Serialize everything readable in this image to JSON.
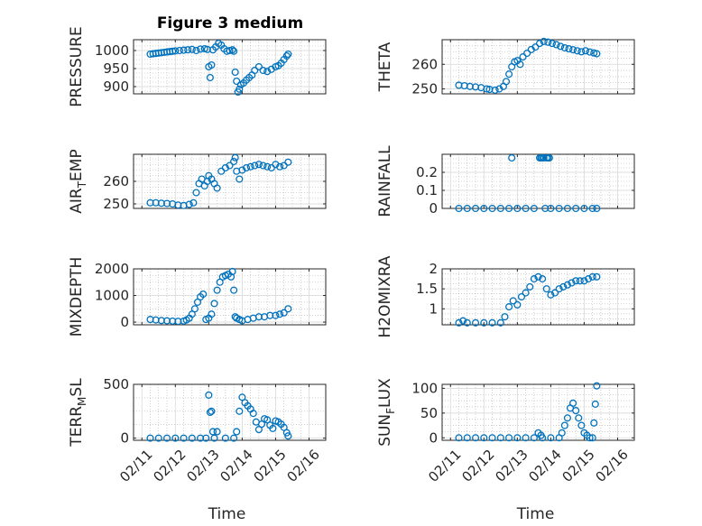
{
  "figure": {
    "title": "Figure 3 medium",
    "xlabel": "Time",
    "x_tick_labels": [
      "02/11",
      "02/12",
      "02/13",
      "02/14",
      "02/15",
      "02/16"
    ],
    "marker_color": "#0072BD"
  },
  "chart_data": [
    {
      "type": "scatter",
      "ylabel": "PRESSURE",
      "ylim": [
        880,
        1030
      ],
      "yticks": [
        900,
        950,
        1000
      ],
      "ytick_labels": [
        "900",
        "950",
        "1000"
      ],
      "series": [
        {
          "x": [
            "02/11 06:00",
            "02/11 08:00",
            "02/11 10:00",
            "02/11 12:00",
            "02/11 14:00",
            "02/11 16:00",
            "02/11 18:00",
            "02/11 20:00",
            "02/11 22:00",
            "02/12 00:00",
            "02/12 03:00",
            "02/12 06:00",
            "02/12 09:00",
            "02/12 12:00",
            "02/12 15:00",
            "02/12 18:00",
            "02/12 21:00",
            "02/12 23:00",
            "02/13 00:00",
            "02/13 01:00",
            "02/13 02:00",
            "02/13 03:00",
            "02/13 05:00",
            "02/13 07:00",
            "02/13 09:00",
            "02/13 11:00",
            "02/13 13:00",
            "02/13 15:00",
            "02/13 17:00",
            "02/13 18:00",
            "02/13 19:00",
            "02/13 20:00",
            "02/13 21:00",
            "02/13 22:00",
            "02/13 23:00",
            "02/14 01:00",
            "02/14 03:00",
            "02/14 05:00",
            "02/14 07:00",
            "02/14 09:00",
            "02/14 12:00",
            "02/14 15:00",
            "02/14 18:00",
            "02/14 21:00",
            "02/15 00:00",
            "02/15 02:00",
            "02/15 04:00",
            "02/15 06:00",
            "02/15 08:00",
            "02/15 09:00"
          ],
          "y": [
            990,
            991,
            992,
            993,
            994,
            995,
            996,
            997,
            998,
            999,
            1000,
            1001,
            1002,
            1003,
            1000,
            1004,
            1005,
            1003,
            955,
            925,
            960,
            1002,
            1010,
            1020,
            1015,
            1005,
            998,
            1000,
            1002,
            998,
            940,
            915,
            885,
            893,
            905,
            910,
            918,
            925,
            932,
            945,
            955,
            945,
            942,
            948,
            955,
            958,
            965,
            975,
            985,
            990
          ]
        }
      ]
    },
    {
      "type": "scatter",
      "ylabel": "THETA",
      "ylim": [
        248,
        270
      ],
      "yticks": [
        250,
        260
      ],
      "ytick_labels": [
        "250",
        "260"
      ],
      "series": [
        {
          "x": [
            "02/11 06:00",
            "02/11 10:00",
            "02/11 14:00",
            "02/11 18:00",
            "02/11 22:00",
            "02/12 02:00",
            "02/12 04:00",
            "02/12 08:00",
            "02/12 11:00",
            "02/12 14:00",
            "02/12 16:00",
            "02/12 18:00",
            "02/12 20:00",
            "02/12 22:00",
            "02/13 00:00",
            "02/13 02:00",
            "02/13 04:00",
            "02/13 07:00",
            "02/13 10:00",
            "02/13 13:00",
            "02/13 16:00",
            "02/13 19:00",
            "02/13 22:00",
            "02/14 01:00",
            "02/14 04:00",
            "02/14 07:00",
            "02/14 10:00",
            "02/14 13:00",
            "02/14 16:00",
            "02/14 19:00",
            "02/14 22:00",
            "02/15 01:00",
            "02/15 04:00",
            "02/15 07:00",
            "02/15 09:00"
          ],
          "y": [
            251.5,
            251.3,
            251,
            250.8,
            250.5,
            250,
            249.8,
            249.5,
            250,
            251,
            253,
            256,
            259,
            261,
            261.5,
            260,
            263,
            264.5,
            266,
            267,
            268.5,
            269.3,
            269,
            268.5,
            268,
            267.3,
            266.7,
            266.3,
            265.9,
            265.5,
            265.1,
            265.5,
            265,
            264.6,
            264.3
          ]
        }
      ]
    },
    {
      "type": "scatter",
      "ylabel": "AIRTEMP",
      "ylabel_parts": [
        "AIR",
        "T",
        "EMP"
      ],
      "ylim": [
        248,
        272
      ],
      "yticks": [
        250,
        260
      ],
      "ytick_labels": [
        "250",
        "260"
      ],
      "series": [
        {
          "x": [
            "02/11 06:00",
            "02/11 10:00",
            "02/11 14:00",
            "02/11 18:00",
            "02/11 22:00",
            "02/12 02:00",
            "02/12 06:00",
            "02/12 10:00",
            "02/12 13:00",
            "02/12 15:00",
            "02/12 17:00",
            "02/12 19:00",
            "02/12 21:00",
            "02/12 23:00",
            "02/13 00:00",
            "02/13 02:00",
            "02/13 04:00",
            "02/13 06:00",
            "02/13 09:00",
            "02/13 12:00",
            "02/13 15:00",
            "02/13 18:00",
            "02/13 19:00",
            "02/13 20:00",
            "02/13 22:00",
            "02/14 00:00",
            "02/14 03:00",
            "02/14 06:00",
            "02/14 09:00",
            "02/14 12:00",
            "02/14 15:00",
            "02/14 18:00",
            "02/14 21:00",
            "02/15 00:00",
            "02/15 03:00",
            "02/15 06:00",
            "02/15 09:00"
          ],
          "y": [
            250.5,
            250.5,
            250.3,
            250.2,
            250,
            249.5,
            249.3,
            249.8,
            250.5,
            255,
            259,
            261,
            258,
            260,
            262.5,
            261,
            259,
            257,
            264.5,
            266,
            267,
            268.8,
            270.5,
            264.5,
            261,
            265,
            266,
            266.5,
            267,
            267.5,
            267,
            266.5,
            266,
            267.5,
            266.5,
            267,
            268.5
          ]
        }
      ]
    },
    {
      "type": "scatter",
      "ylabel": "RAINFALL",
      "ylim": [
        0,
        0.3
      ],
      "yticks": [
        0,
        0.1,
        0.2
      ],
      "ytick_labels": [
        "0",
        "0.1",
        "0.2"
      ],
      "series": [
        {
          "x": [
            "02/11 06:00",
            "02/11 12:00",
            "02/11 18:00",
            "02/12 00:00",
            "02/12 06:00",
            "02/12 12:00",
            "02/12 18:00",
            "02/12 20:00",
            "02/13 00:00",
            "02/13 06:00",
            "02/13 12:00",
            "02/13 16:00",
            "02/13 17:00",
            "02/13 18:00",
            "02/13 19:00",
            "02/13 20:00",
            "02/13 21:00",
            "02/13 22:00",
            "02/13 23:00",
            "02/14 00:00",
            "02/14 06:00",
            "02/14 12:00",
            "02/14 18:00",
            "02/15 00:00",
            "02/15 06:00",
            "02/15 09:00"
          ],
          "y": [
            0,
            0,
            0,
            0,
            0,
            0,
            0,
            0.28,
            0,
            0,
            0,
            0.28,
            0.28,
            0.28,
            0.28,
            0,
            0.28,
            0.28,
            0.28,
            0,
            0,
            0,
            0,
            0,
            0,
            0
          ]
        }
      ]
    },
    {
      "type": "scatter",
      "ylabel": "MIXDEPTH",
      "ylim": [
        -100,
        2000
      ],
      "yticks": [
        0,
        1000,
        2000
      ],
      "ytick_labels": [
        "0",
        "1000",
        "2000"
      ],
      "series": [
        {
          "x": [
            "02/11 06:00",
            "02/11 10:00",
            "02/11 14:00",
            "02/11 18:00",
            "02/11 22:00",
            "02/12 02:00",
            "02/12 06:00",
            "02/12 08:00",
            "02/12 10:00",
            "02/12 12:00",
            "02/12 14:00",
            "02/12 16:00",
            "02/12 18:00",
            "02/12 20:00",
            "02/12 22:00",
            "02/13 00:00",
            "02/13 02:00",
            "02/13 04:00",
            "02/13 06:00",
            "02/13 08:00",
            "02/13 10:00",
            "02/13 12:00",
            "02/13 14:00",
            "02/13 16:00",
            "02/13 17:00",
            "02/13 18:00",
            "02/13 19:00",
            "02/13 20:00",
            "02/13 22:00",
            "02/14 00:00",
            "02/14 04:00",
            "02/14 08:00",
            "02/14 12:00",
            "02/14 16:00",
            "02/14 20:00",
            "02/15 00:00",
            "02/15 03:00",
            "02/15 06:00",
            "02/15 09:00"
          ],
          "y": [
            100,
            80,
            60,
            50,
            40,
            30,
            40,
            80,
            150,
            300,
            500,
            750,
            950,
            1050,
            100,
            150,
            300,
            700,
            1200,
            1500,
            1700,
            1750,
            1800,
            1700,
            1900,
            1200,
            200,
            150,
            100,
            50,
            100,
            150,
            200,
            200,
            250,
            250,
            300,
            350,
            500
          ]
        }
      ]
    },
    {
      "type": "scatter",
      "ylabel": "H2OMIXRA",
      "ylim": [
        0.6,
        2.0
      ],
      "yticks": [
        1,
        1.5,
        2
      ],
      "ytick_labels": [
        "1",
        "1.5",
        "2"
      ],
      "series": [
        {
          "x": [
            "02/11 06:00",
            "02/11 09:00",
            "02/11 12:00",
            "02/11 18:00",
            "02/12 00:00",
            "02/12 06:00",
            "02/12 12:00",
            "02/12 15:00",
            "02/12 18:00",
            "02/12 21:00",
            "02/13 00:00",
            "02/13 03:00",
            "02/13 06:00",
            "02/13 09:00",
            "02/13 12:00",
            "02/13 15:00",
            "02/13 18:00",
            "02/13 21:00",
            "02/14 00:00",
            "02/14 03:00",
            "02/14 06:00",
            "02/14 09:00",
            "02/14 12:00",
            "02/14 15:00",
            "02/14 18:00",
            "02/14 21:00",
            "02/15 00:00",
            "02/15 03:00",
            "02/15 06:00",
            "02/15 09:00"
          ],
          "y": [
            0.65,
            0.7,
            0.65,
            0.65,
            0.65,
            0.65,
            0.65,
            0.8,
            1.05,
            1.2,
            1.1,
            1.3,
            1.4,
            1.55,
            1.75,
            1.8,
            1.75,
            1.5,
            1.35,
            1.4,
            1.5,
            1.55,
            1.6,
            1.65,
            1.7,
            1.7,
            1.7,
            1.75,
            1.8,
            1.8
          ]
        }
      ]
    },
    {
      "type": "scatter",
      "ylabel": "TERRMSL",
      "ylabel_parts": [
        "TERR",
        "M",
        "SL"
      ],
      "ylim": [
        -20,
        500
      ],
      "yticks": [
        0,
        500
      ],
      "ytick_labels": [
        "0",
        "500"
      ],
      "series": [
        {
          "x": [
            "02/11 06:00",
            "02/11 12:00",
            "02/11 18:00",
            "02/12 00:00",
            "02/12 06:00",
            "02/12 12:00",
            "02/12 18:00",
            "02/12 22:00",
            "02/13 00:00",
            "02/13 01:00",
            "02/13 02:00",
            "02/13 03:00",
            "02/13 04:00",
            "02/13 06:00",
            "02/13 12:00",
            "02/13 18:00",
            "02/13 20:00",
            "02/13 22:00",
            "02/14 00:00",
            "02/14 02:00",
            "02/14 04:00",
            "02/14 06:00",
            "02/14 08:00",
            "02/14 10:00",
            "02/14 12:00",
            "02/14 14:00",
            "02/14 16:00",
            "02/14 18:00",
            "02/14 20:00",
            "02/14 22:00",
            "02/15 00:00",
            "02/15 02:00",
            "02/15 04:00",
            "02/15 06:00",
            "02/15 08:00",
            "02/15 09:00"
          ],
          "y": [
            0,
            0,
            0,
            0,
            0,
            0,
            0,
            0,
            400,
            240,
            250,
            60,
            0,
            60,
            0,
            0,
            60,
            250,
            380,
            330,
            300,
            270,
            230,
            150,
            80,
            130,
            180,
            170,
            120,
            90,
            160,
            150,
            130,
            100,
            50,
            20
          ]
        }
      ]
    },
    {
      "type": "scatter",
      "ylabel": "SUNFLUX",
      "ylabel_parts": [
        "SUN",
        "F",
        "LUX"
      ],
      "ylim": [
        -5,
        108
      ],
      "yticks": [
        0,
        50,
        100
      ],
      "ytick_labels": [
        "0",
        "50",
        "100"
      ],
      "series": [
        {
          "x": [
            "02/11 06:00",
            "02/11 12:00",
            "02/11 18:00",
            "02/12 00:00",
            "02/12 06:00",
            "02/12 12:00",
            "02/12 18:00",
            "02/13 00:00",
            "02/13 06:00",
            "02/13 12:00",
            "02/13 15:00",
            "02/13 17:00",
            "02/13 18:00",
            "02/14 00:00",
            "02/14 06:00",
            "02/14 08:00",
            "02/14 10:00",
            "02/14 12:00",
            "02/14 14:00",
            "02/14 16:00",
            "02/14 18:00",
            "02/14 20:00",
            "02/14 22:00",
            "02/15 00:00",
            "02/15 02:00",
            "02/15 04:00",
            "02/15 06:00",
            "02/15 07:00",
            "02/15 08:00",
            "02/15 09:00"
          ],
          "y": [
            0,
            0,
            0,
            0,
            0,
            0,
            0,
            0,
            0,
            0,
            10,
            5,
            0,
            0,
            0,
            10,
            25,
            40,
            60,
            70,
            55,
            40,
            25,
            10,
            5,
            0,
            0,
            30,
            68,
            105
          ]
        }
      ]
    }
  ]
}
